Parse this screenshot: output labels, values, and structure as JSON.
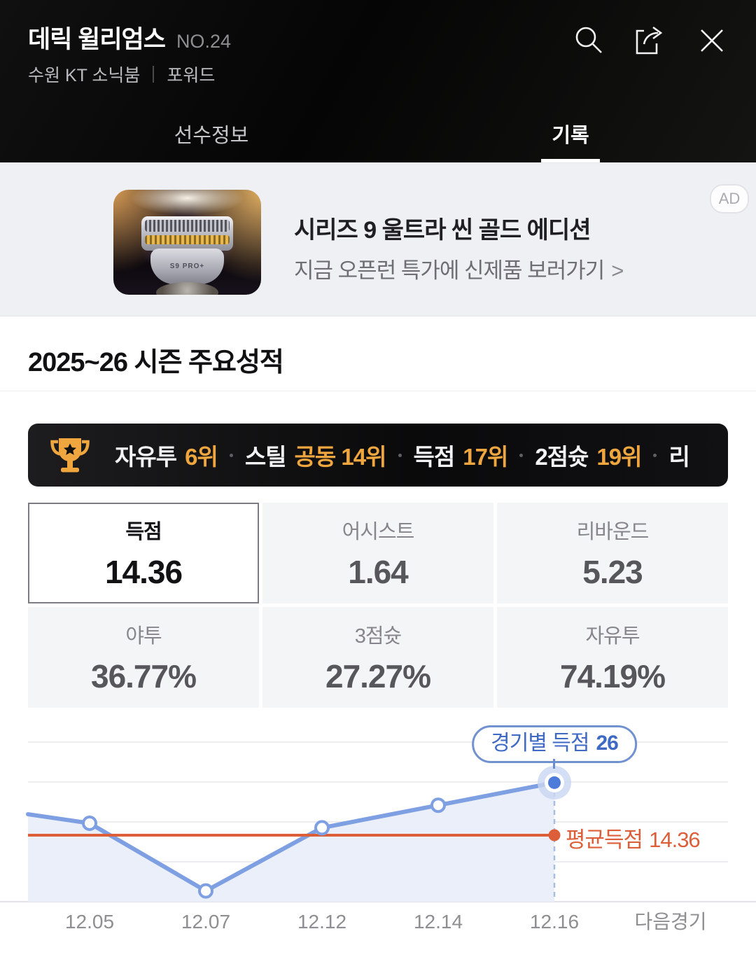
{
  "header": {
    "title": "데릭 윌리엄스",
    "number": "NO.24",
    "team": "수원 KT 소닉붐",
    "position": "포워드",
    "icons": {
      "search": "magnifier",
      "share": "box-arrow-out",
      "close": "x"
    }
  },
  "tabs": {
    "items": [
      {
        "label": "선수정보",
        "active": false
      },
      {
        "label": "기록",
        "active": true
      }
    ]
  },
  "ad": {
    "badge": "AD",
    "title": "시리즈 9 울트라 씬 골드 에디션",
    "subtitle": "지금 오픈런 특가에 신제품 보러가기",
    "chevron": ">",
    "image_label": "S9 PRO+"
  },
  "section": {
    "title": "2025~26 시즌 주요성적"
  },
  "rankings": {
    "items": [
      {
        "label": "자유투",
        "rank": "6위"
      },
      {
        "label": "스틸",
        "rank": "공동 14위"
      },
      {
        "label": "득점",
        "rank": "17위"
      },
      {
        "label": "2점슛",
        "rank": "19위"
      },
      {
        "label": "리",
        "rank": ""
      }
    ]
  },
  "stats": {
    "rows": [
      [
        {
          "label": "득점",
          "value": "14.36",
          "selected": true
        },
        {
          "label": "어시스트",
          "value": "1.64",
          "selected": false
        },
        {
          "label": "리바운드",
          "value": "5.23",
          "selected": false
        }
      ],
      [
        {
          "label": "야투",
          "value": "36.77%",
          "selected": false
        },
        {
          "label": "3점슛",
          "value": "27.27%",
          "selected": false
        },
        {
          "label": "자유투",
          "value": "74.19%",
          "selected": false
        }
      ]
    ]
  },
  "chart_data": {
    "type": "line",
    "series_label": "경기별 득점",
    "x": [
      "12.05",
      "12.07",
      "12.12",
      "12.14",
      "12.16"
    ],
    "values": [
      17,
      2,
      16,
      21,
      26
    ],
    "edge_entry_value": 19,
    "next_game_label": "다음경기",
    "tooltip": {
      "label": "경기별 득점",
      "value": "26"
    },
    "average": {
      "label": "평균득점",
      "value": "14.36"
    },
    "ylim": [
      0,
      35
    ],
    "grid": true,
    "legend_position": "none",
    "colors": {
      "line": "#7e9fe2",
      "fill": "#eaeffa",
      "average": "#dd5f3a",
      "point_fill": "#ffffff",
      "last_point": "#4c7bd9",
      "halo": "#c9d6f1",
      "dashed": "#a9bedb",
      "gridline": "#ededf1",
      "axis": "#e2e3e7",
      "tick_label": "#8e8e93",
      "tooltip_text": "#3e6ac6",
      "tooltip_border": "#7191cf"
    }
  },
  "colors": {
    "header_bg": "#0a0a0a",
    "gold": "#efa63e",
    "ad_bg": "#eff0f4",
    "cell_bg": "#f4f5f7"
  }
}
